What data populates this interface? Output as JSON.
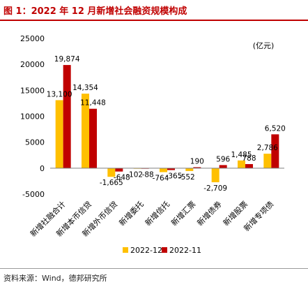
{
  "header": {
    "title": "图 1：2022 年 12 月新增社会融资规模构成"
  },
  "footer": {
    "source": "资料来源：Wind，德邦研究所"
  },
  "chart_data": {
    "type": "bar",
    "unit_label": "(亿元)",
    "categories": [
      "新增社融合计",
      "新增本币信贷",
      "新增外币信贷",
      "新增委托",
      "新增信托",
      "新增汇票",
      "新增债券",
      "新增股票",
      "新增专项债"
    ],
    "series": [
      {
        "name": "2022-12",
        "color": "#ffc000",
        "values": [
          13100,
          14354,
          -1665,
          -102,
          -764,
          -552,
          -2709,
          1485,
          2786
        ],
        "labels": [
          "13,100",
          "14,354",
          "-1,665",
          "-102",
          "-764",
          "-552",
          "-2,709",
          "1,485",
          "2,786"
        ]
      },
      {
        "name": "2022-11",
        "color": "#c00000",
        "values": [
          19874,
          11448,
          -648,
          -88,
          -365,
          190,
          596,
          788,
          6520
        ],
        "labels": [
          "19,874",
          "11,448",
          "-648",
          "-88",
          "-365",
          "190",
          "596",
          "788",
          "6,520"
        ]
      }
    ],
    "ylim": [
      -5000,
      25000
    ],
    "yticks": [
      -5000,
      0,
      5000,
      10000,
      15000,
      20000,
      25000
    ],
    "ytick_labels": [
      "-5000",
      "0",
      "5000",
      "10000",
      "15000",
      "20000",
      "25000"
    ],
    "legend_position": "bottom",
    "grid": false
  }
}
